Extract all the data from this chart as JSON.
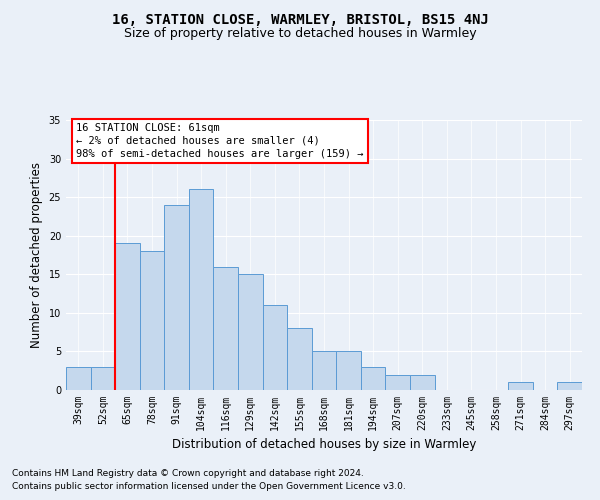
{
  "title": "16, STATION CLOSE, WARMLEY, BRISTOL, BS15 4NJ",
  "subtitle": "Size of property relative to detached houses in Warmley",
  "xlabel": "Distribution of detached houses by size in Warmley",
  "ylabel": "Number of detached properties",
  "footnote1": "Contains HM Land Registry data © Crown copyright and database right 2024.",
  "footnote2": "Contains public sector information licensed under the Open Government Licence v3.0.",
  "annotation_line1": "16 STATION CLOSE: 61sqm",
  "annotation_line2": "← 2% of detached houses are smaller (4)",
  "annotation_line3": "98% of semi-detached houses are larger (159) →",
  "bar_labels": [
    "39sqm",
    "52sqm",
    "65sqm",
    "78sqm",
    "91sqm",
    "104sqm",
    "116sqm",
    "129sqm",
    "142sqm",
    "155sqm",
    "168sqm",
    "181sqm",
    "194sqm",
    "207sqm",
    "220sqm",
    "233sqm",
    "245sqm",
    "258sqm",
    "271sqm",
    "284sqm",
    "297sqm"
  ],
  "bar_values": [
    3,
    3,
    19,
    18,
    24,
    26,
    16,
    15,
    11,
    8,
    5,
    5,
    3,
    2,
    2,
    0,
    0,
    0,
    1,
    0,
    1
  ],
  "bar_color": "#c5d8ed",
  "bar_edge_color": "#5b9bd5",
  "vline_color": "#ff0000",
  "ylim": [
    0,
    35
  ],
  "yticks": [
    0,
    5,
    10,
    15,
    20,
    25,
    30,
    35
  ],
  "bg_color": "#eaf0f8",
  "plot_bg_color": "#eaf0f8",
  "grid_color": "#ffffff",
  "title_fontsize": 10,
  "subtitle_fontsize": 9,
  "axis_label_fontsize": 8.5,
  "tick_fontsize": 7,
  "annotation_fontsize": 7.5,
  "footnote_fontsize": 6.5
}
